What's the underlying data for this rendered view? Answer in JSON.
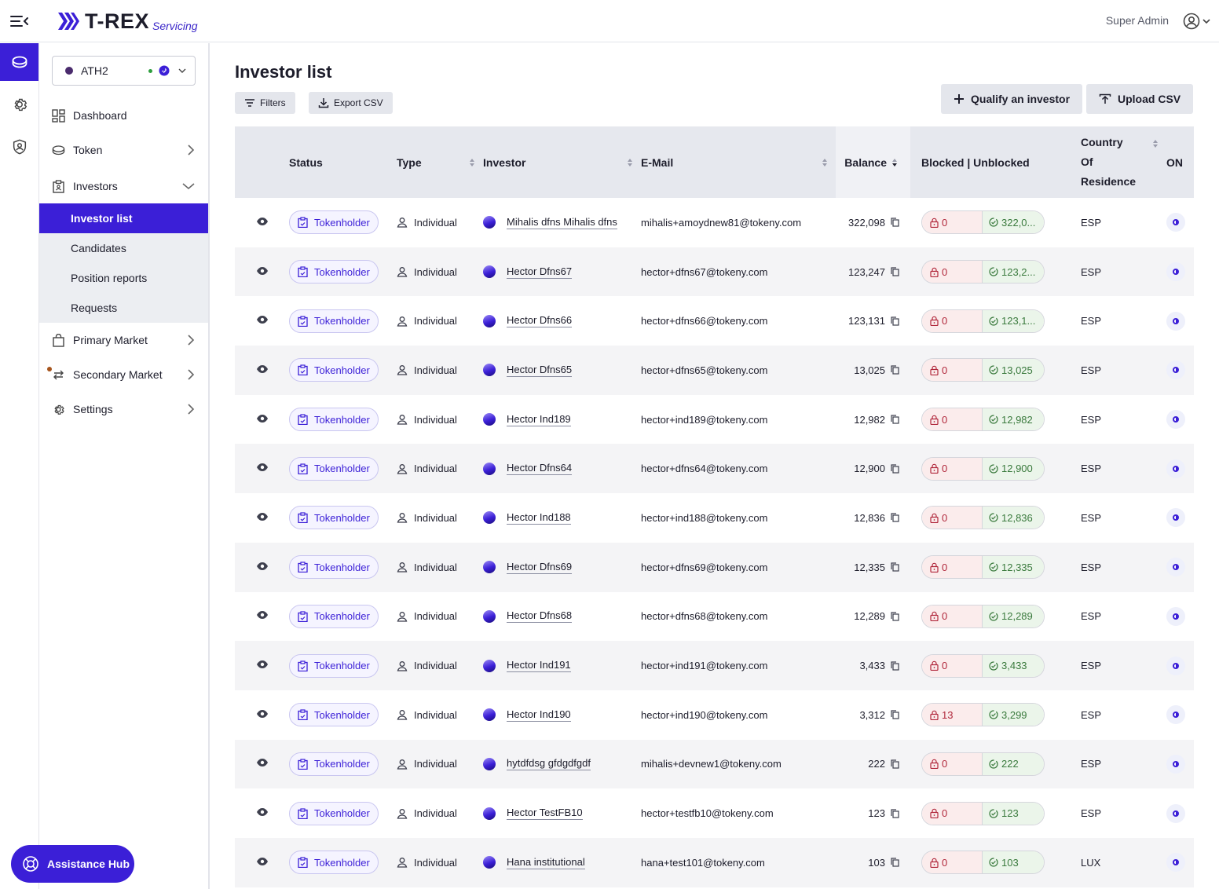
{
  "header": {
    "logo_text": "T-REX",
    "logo_sub": "Servicing",
    "user_name": "Super Admin"
  },
  "colors": {
    "accent": "#3b1fd7",
    "blocked": "#b0263a",
    "unblocked": "#3a7a3d"
  },
  "sidebar": {
    "token": {
      "name": "ATH2"
    },
    "items": [
      {
        "label": "Dashboard",
        "icon": "dashboard-icon"
      },
      {
        "label": "Token",
        "icon": "coin-icon"
      },
      {
        "label": "Investors",
        "icon": "clipboard-icon"
      },
      {
        "label": "Primary Market",
        "icon": "shopping-bag-icon"
      },
      {
        "label": "Secondary Market",
        "icon": "swap-arrows-icon"
      },
      {
        "label": "Settings",
        "icon": "gear-icon"
      }
    ],
    "investors_sub": [
      "Investor list",
      "Candidates",
      "Position reports",
      "Requests"
    ],
    "assistance_label": "Assistance Hub"
  },
  "main": {
    "title": "Investor list",
    "filters_label": "Filters",
    "export_label": "Export CSV",
    "qualify_label": "Qualify an investor",
    "upload_label": "Upload CSV",
    "columns": {
      "status": "Status",
      "type": "Type",
      "investor": "Investor",
      "email": "E-Mail",
      "balance": "Balance",
      "blocked_unblocked": "Blocked | Unblocked",
      "country_1": "Country",
      "country_2": "Of",
      "country_3": "Residence",
      "onchain": "ON"
    }
  },
  "rows": [
    {
      "status": "Tokenholder",
      "type": "Individual",
      "investor": "Mihalis dfns Mihalis dfns",
      "email": "mihalis+amoydnew81@tokeny.com",
      "balance": "322,098",
      "blocked": "0",
      "unblocked": "322,0...",
      "country": "ESP"
    },
    {
      "status": "Tokenholder",
      "type": "Individual",
      "investor": "Hector Dfns67",
      "email": "hector+dfns67@tokeny.com",
      "balance": "123,247",
      "blocked": "0",
      "unblocked": "123,2...",
      "country": "ESP"
    },
    {
      "status": "Tokenholder",
      "type": "Individual",
      "investor": "Hector Dfns66",
      "email": "hector+dfns66@tokeny.com",
      "balance": "123,131",
      "blocked": "0",
      "unblocked": "123,1...",
      "country": "ESP"
    },
    {
      "status": "Tokenholder",
      "type": "Individual",
      "investor": "Hector Dfns65",
      "email": "hector+dfns65@tokeny.com",
      "balance": "13,025",
      "blocked": "0",
      "unblocked": "13,025",
      "country": "ESP"
    },
    {
      "status": "Tokenholder",
      "type": "Individual",
      "investor": "Hector Ind189",
      "email": "hector+ind189@tokeny.com",
      "balance": "12,982",
      "blocked": "0",
      "unblocked": "12,982",
      "country": "ESP"
    },
    {
      "status": "Tokenholder",
      "type": "Individual",
      "investor": "Hector Dfns64",
      "email": "hector+dfns64@tokeny.com",
      "balance": "12,900",
      "blocked": "0",
      "unblocked": "12,900",
      "country": "ESP"
    },
    {
      "status": "Tokenholder",
      "type": "Individual",
      "investor": "Hector Ind188",
      "email": "hector+ind188@tokeny.com",
      "balance": "12,836",
      "blocked": "0",
      "unblocked": "12,836",
      "country": "ESP"
    },
    {
      "status": "Tokenholder",
      "type": "Individual",
      "investor": "Hector Dfns69",
      "email": "hector+dfns69@tokeny.com",
      "balance": "12,335",
      "blocked": "0",
      "unblocked": "12,335",
      "country": "ESP"
    },
    {
      "status": "Tokenholder",
      "type": "Individual",
      "investor": "Hector Dfns68",
      "email": "hector+dfns68@tokeny.com",
      "balance": "12,289",
      "blocked": "0",
      "unblocked": "12,289",
      "country": "ESP"
    },
    {
      "status": "Tokenholder",
      "type": "Individual",
      "investor": "Hector Ind191",
      "email": "hector+ind191@tokeny.com",
      "balance": "3,433",
      "blocked": "0",
      "unblocked": "3,433",
      "country": "ESP"
    },
    {
      "status": "Tokenholder",
      "type": "Individual",
      "investor": "Hector Ind190",
      "email": "hector+ind190@tokeny.com",
      "balance": "3,312",
      "blocked": "13",
      "unblocked": "3,299",
      "country": "ESP"
    },
    {
      "status": "Tokenholder",
      "type": "Individual",
      "investor": "hytdfdsg gfdgdfgdf",
      "email": "mihalis+devnew1@tokeny.com",
      "balance": "222",
      "blocked": "0",
      "unblocked": "222",
      "country": "ESP"
    },
    {
      "status": "Tokenholder",
      "type": "Individual",
      "investor": "Hector TestFB10",
      "email": "hector+testfb10@tokeny.com",
      "balance": "123",
      "blocked": "0",
      "unblocked": "123",
      "country": "ESP"
    },
    {
      "status": "Tokenholder",
      "type": "Individual",
      "investor": "Hana institutional",
      "email": "hana+test101@tokeny.com",
      "balance": "103",
      "blocked": "0",
      "unblocked": "103",
      "country": "LUX"
    }
  ]
}
